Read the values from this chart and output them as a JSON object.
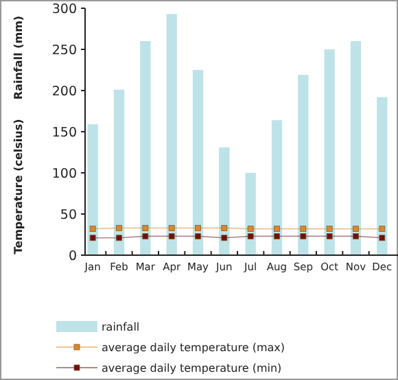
{
  "chart_data": {
    "type": "bar",
    "ylabel": "Rainfall (mm)",
    "y2label": "Temperature (celsius)",
    "categories": [
      "Jan",
      "Feb",
      "Mar",
      "Apr",
      "May",
      "Jun",
      "Jul",
      "Aug",
      "Sep",
      "Oct",
      "Nov",
      "Dec"
    ],
    "ylim": [
      0,
      300
    ],
    "yticks": [
      0,
      50,
      100,
      150,
      200,
      250,
      300
    ],
    "legend": "bottom",
    "marker": "square",
    "series": [
      {
        "name": "rainfall",
        "color": "#bde3e8",
        "values": [
          159,
          201,
          260,
          293,
          225,
          131,
          100,
          164,
          219,
          250,
          260,
          192
        ]
      },
      {
        "name": "average daily temperature (max)",
        "type": "line",
        "color": "#d9872e",
        "values": [
          32,
          33,
          33,
          33,
          33,
          33,
          32,
          32,
          32,
          32,
          32,
          32
        ]
      },
      {
        "name": "average daily temperature (min)",
        "type": "line",
        "color": "#6e1010",
        "values": [
          21,
          21,
          23,
          23,
          23,
          21,
          23,
          23,
          23,
          23,
          23,
          21
        ]
      }
    ]
  }
}
